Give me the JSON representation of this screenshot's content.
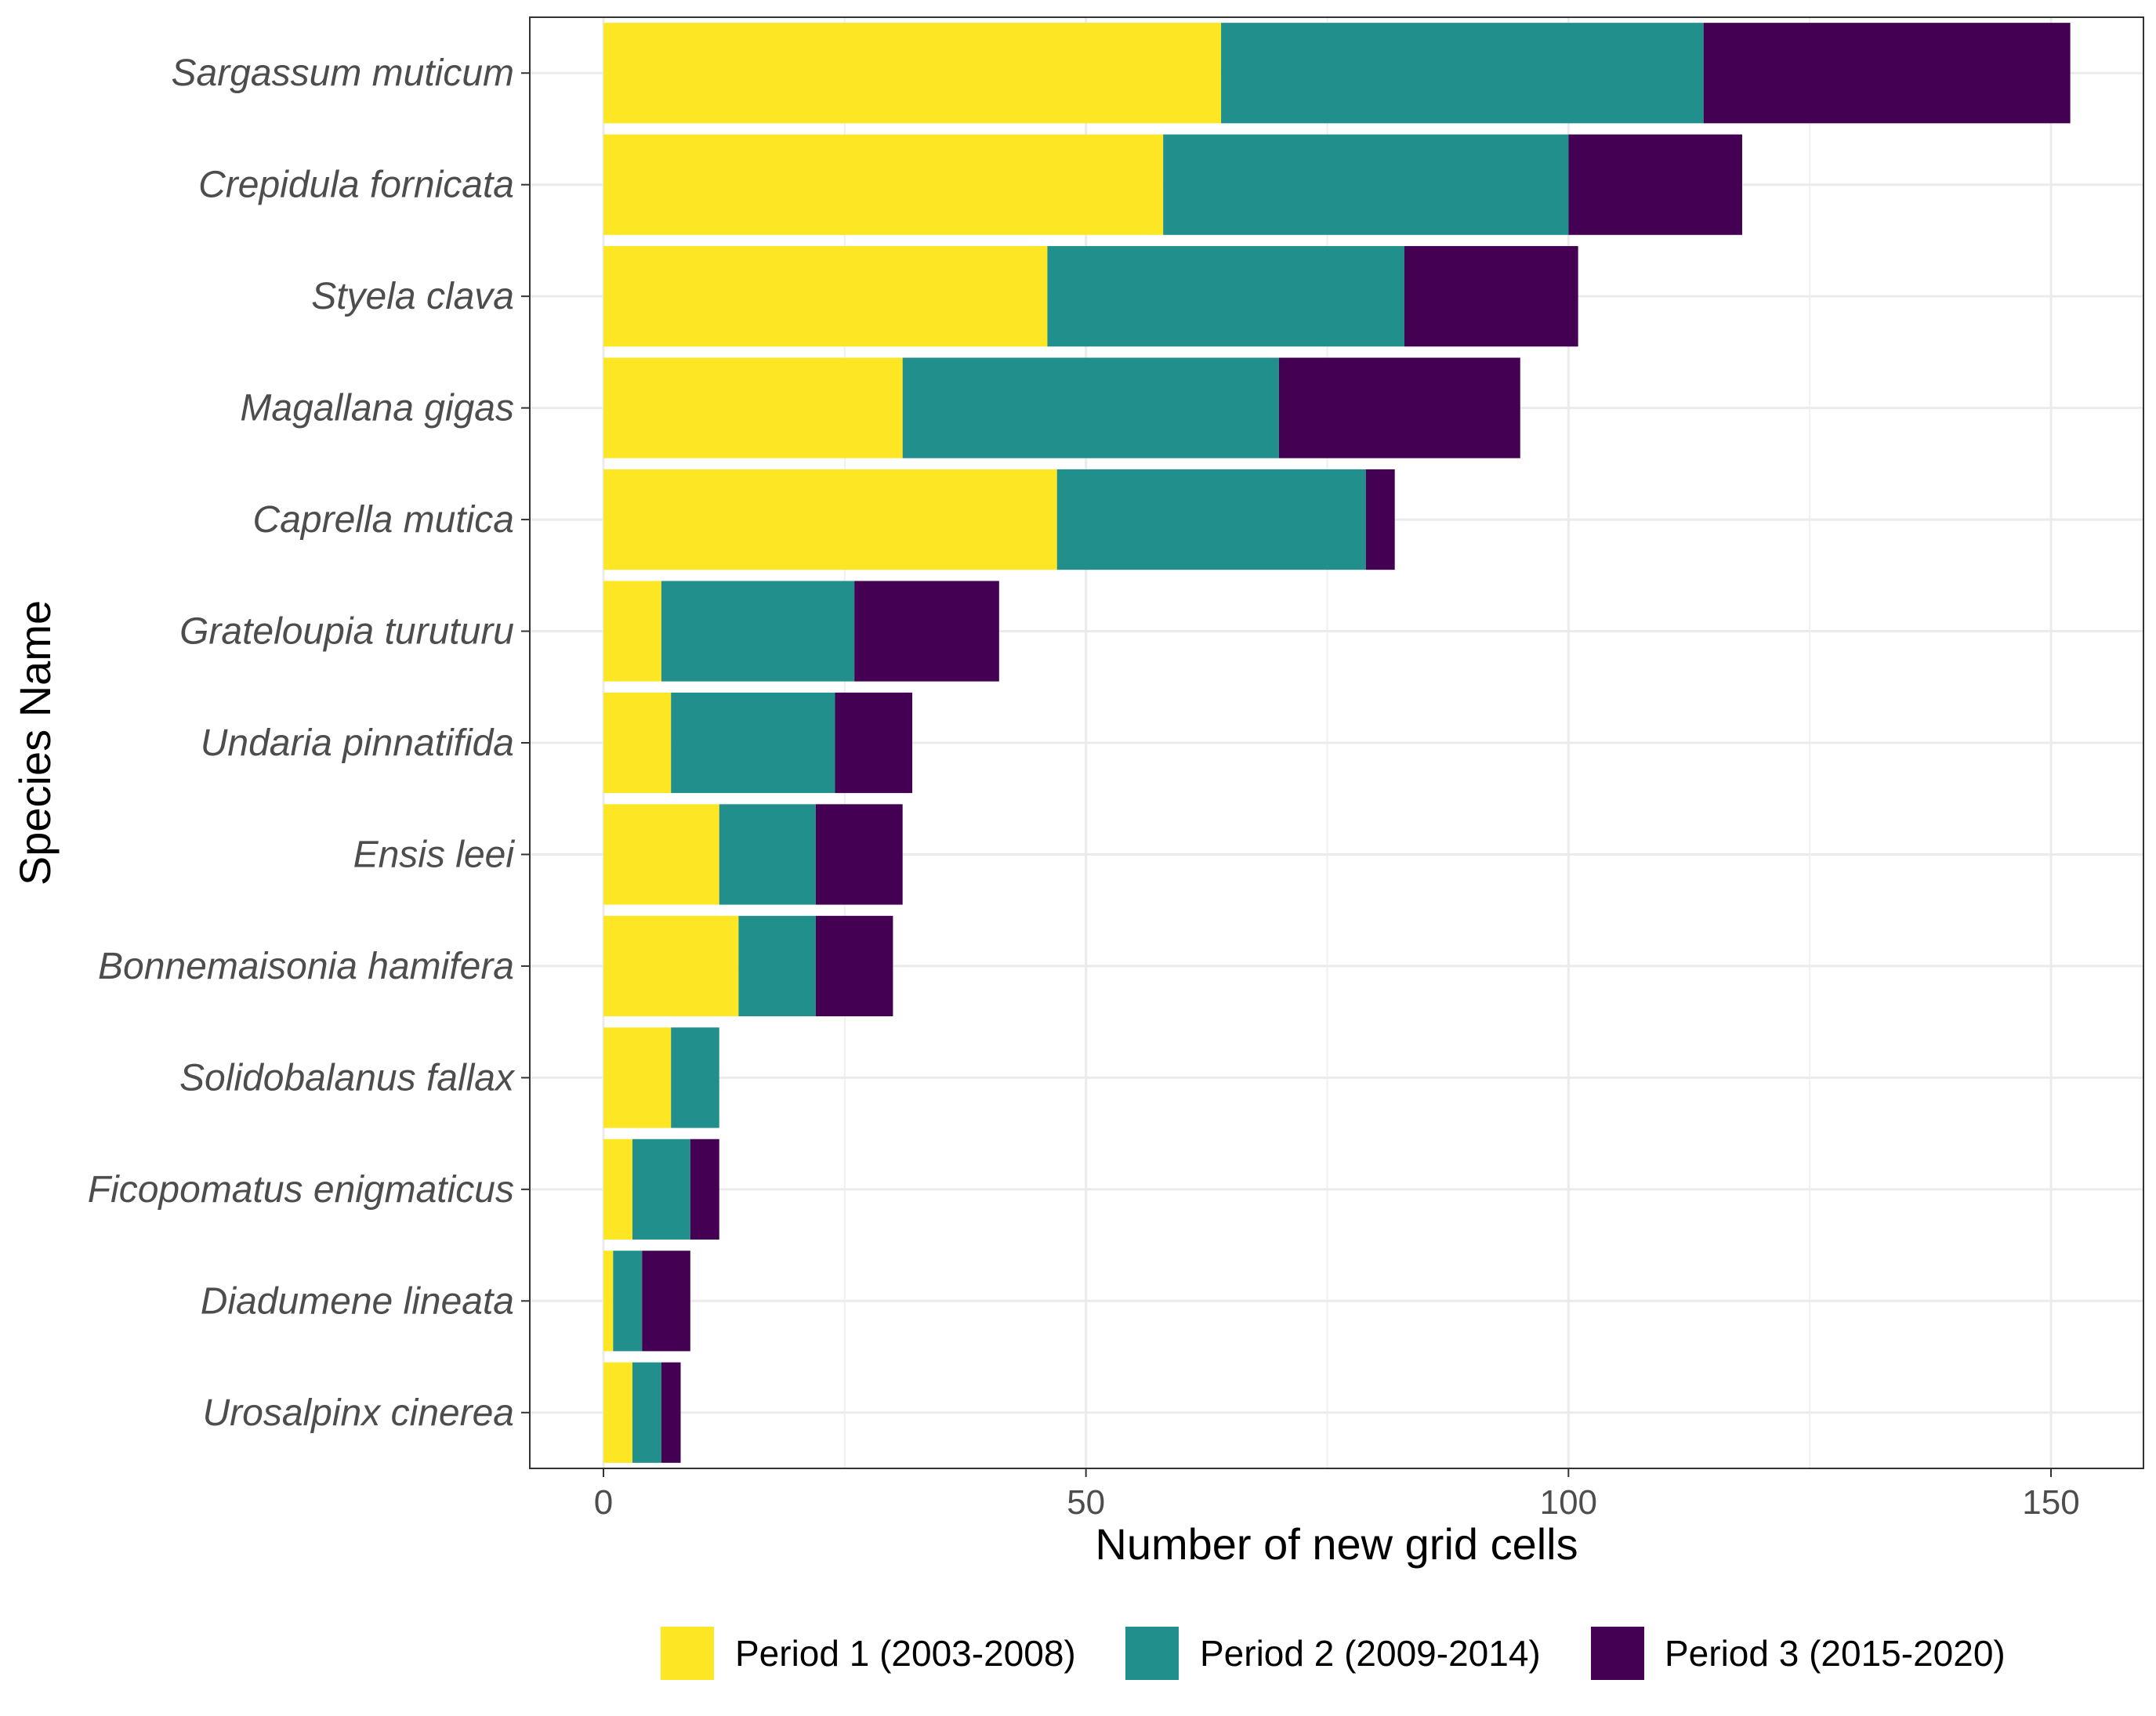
{
  "chart_data": {
    "type": "bar",
    "orientation": "horizontal",
    "stacked": true,
    "title": "",
    "xlabel": "Number of new grid cells",
    "ylabel": "Species Name",
    "xlim": [
      -8,
      160
    ],
    "x_ticks": [
      0,
      50,
      100,
      150
    ],
    "x_minor_ticks": [
      25,
      75,
      125
    ],
    "grid": true,
    "legend_position": "bottom",
    "categories": [
      "Sargassum muticum",
      "Crepidula fornicata",
      "Styela clava",
      "Magallana gigas",
      "Caprella mutica",
      "Grateloupia turuturu",
      "Undaria pinnatifida",
      "Ensis leei",
      "Bonnemaisonia hamifera",
      "Solidobalanus fallax",
      "Ficopomatus enigmaticus",
      "Diadumene lineata",
      "Urosalpinx cinerea"
    ],
    "series": [
      {
        "name": "Period 1 (2003-2008)",
        "color": "#FDE725",
        "values": [
          64,
          58,
          46,
          31,
          47,
          6,
          7,
          12,
          14,
          7,
          3,
          1,
          3
        ]
      },
      {
        "name": "Period 2 (2009-2014)",
        "color": "#21908C",
        "values": [
          50,
          42,
          37,
          39,
          32,
          20,
          17,
          10,
          8,
          5,
          6,
          3,
          3
        ]
      },
      {
        "name": "Period 3 (2015-2020)",
        "color": "#440154",
        "values": [
          38,
          18,
          18,
          25,
          3,
          15,
          8,
          9,
          8,
          0,
          3,
          5,
          2
        ]
      }
    ]
  }
}
